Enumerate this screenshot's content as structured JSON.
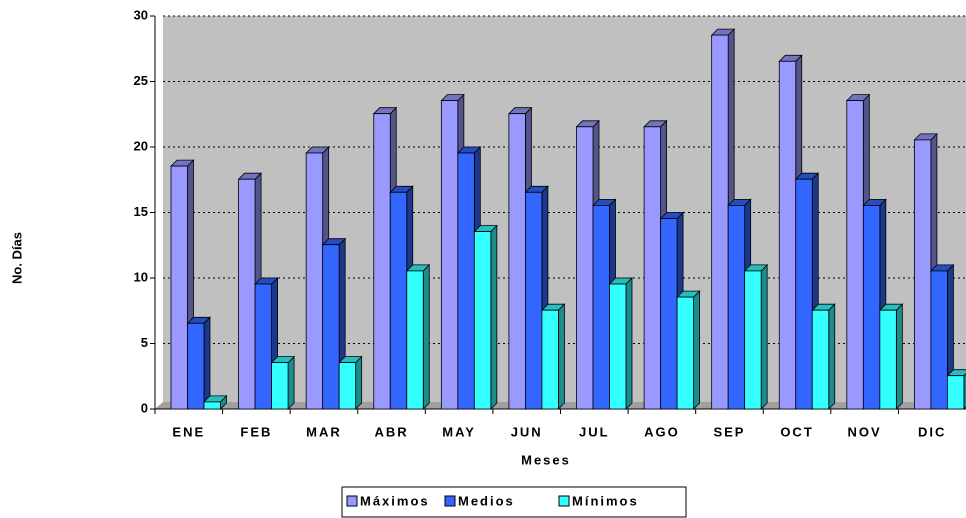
{
  "chart_data": {
    "type": "bar3d",
    "x_label": "Meses",
    "y_label": "No. Días",
    "categories": [
      "ENE",
      "FEB",
      "MAR",
      "ABR",
      "MAY",
      "JUN",
      "JUL",
      "AGO",
      "SEP",
      "OCT",
      "NOV",
      "DIC"
    ],
    "series": [
      {
        "name": "Máximos",
        "color": "#9999ff",
        "values": [
          19,
          18,
          20,
          23,
          24,
          23,
          22,
          22,
          29,
          27,
          24,
          21
        ]
      },
      {
        "name": "Medios",
        "color": "#3366ff",
        "values": [
          7,
          10,
          13,
          17,
          20,
          17,
          16,
          15,
          16,
          18,
          16,
          11
        ]
      },
      {
        "name": "Mínimos",
        "color": "#33ffff",
        "values": [
          1,
          4,
          4,
          11,
          14,
          8,
          10,
          9,
          11,
          8,
          8,
          3
        ]
      }
    ],
    "ylim": [
      0,
      30
    ],
    "yticks": [
      0,
      5,
      10,
      15,
      20,
      25,
      30
    ],
    "grid": true,
    "legend": "bottom"
  }
}
